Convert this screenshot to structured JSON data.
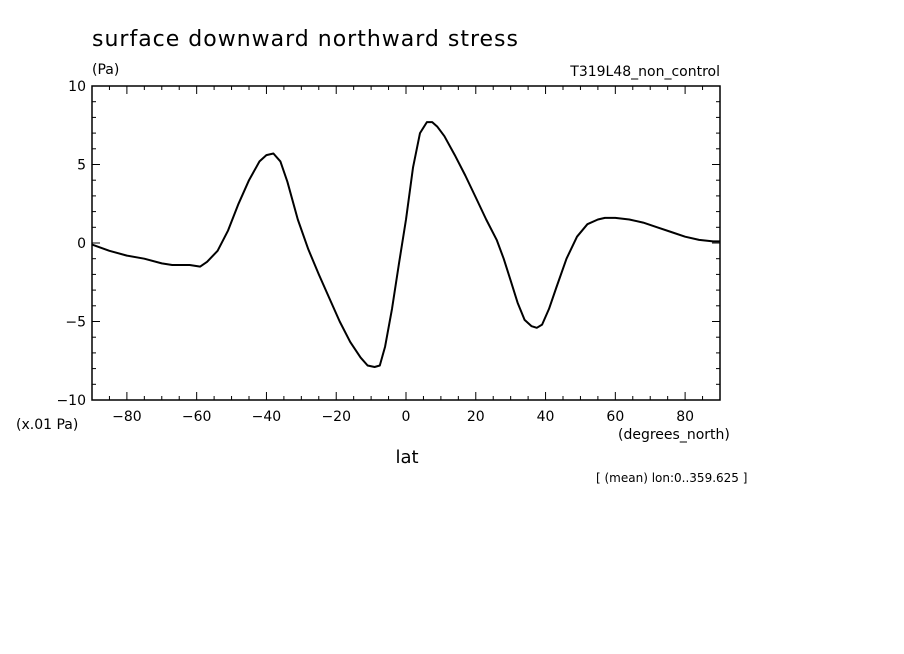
{
  "chart_data": {
    "type": "line",
    "title": "surface downward northward stress",
    "units_label": "(Pa)",
    "experiment_label": "T319L48_non_control",
    "scale_note": "(x.01 Pa)",
    "xlabel": "lat",
    "xunits_label": "(degrees_north)",
    "footnote": "[ (mean) lon:0..359.625 ]",
    "xlim": [
      -90,
      90
    ],
    "ylim": [
      -10,
      10
    ],
    "x_ticks": [
      -80,
      -60,
      -40,
      -20,
      0,
      20,
      40,
      60,
      80
    ],
    "x_tick_labels": [
      "−80",
      "−60",
      "−40",
      "−20",
      "0",
      "20",
      "40",
      "60",
      "80"
    ],
    "y_ticks": [
      10,
      5,
      0,
      -5,
      -10
    ],
    "y_tick_labels": [
      "10",
      "5",
      "0",
      "−5",
      "−10"
    ],
    "line_color": "#000000",
    "series": [
      {
        "x": [
          -90,
          -85,
          -80,
          -75,
          -70,
          -67,
          -62,
          -59,
          -57,
          -54,
          -51,
          -48,
          -45,
          -42,
          -40,
          -38,
          -36,
          -34,
          -31,
          -28,
          -25,
          -22,
          -19,
          -16,
          -13,
          -11,
          -9,
          -7.5,
          -6,
          -4,
          -2,
          0,
          2,
          4,
          6,
          7.5,
          9,
          11,
          14,
          17,
          20,
          23,
          26,
          28,
          30,
          32,
          34,
          36,
          37.5,
          39,
          41,
          43,
          46,
          49,
          52,
          55,
          57,
          60,
          64,
          68,
          72,
          76,
          80,
          84,
          88,
          90
        ],
        "y": [
          -0.1,
          -0.5,
          -0.8,
          -1.0,
          -1.3,
          -1.4,
          -1.4,
          -1.5,
          -1.2,
          -0.5,
          0.8,
          2.5,
          4.0,
          5.2,
          5.6,
          5.7,
          5.2,
          3.9,
          1.5,
          -0.4,
          -2.0,
          -3.5,
          -5.0,
          -6.3,
          -7.3,
          -7.8,
          -7.9,
          -7.8,
          -6.6,
          -4.2,
          -1.3,
          1.5,
          4.8,
          7.0,
          7.7,
          7.7,
          7.4,
          6.8,
          5.6,
          4.3,
          2.9,
          1.5,
          0.2,
          -1.0,
          -2.4,
          -3.8,
          -4.9,
          -5.3,
          -5.4,
          -5.2,
          -4.2,
          -2.9,
          -1.0,
          0.4,
          1.2,
          1.5,
          1.6,
          1.6,
          1.5,
          1.3,
          1.0,
          0.7,
          0.4,
          0.2,
          0.1,
          0.1
        ]
      }
    ]
  }
}
